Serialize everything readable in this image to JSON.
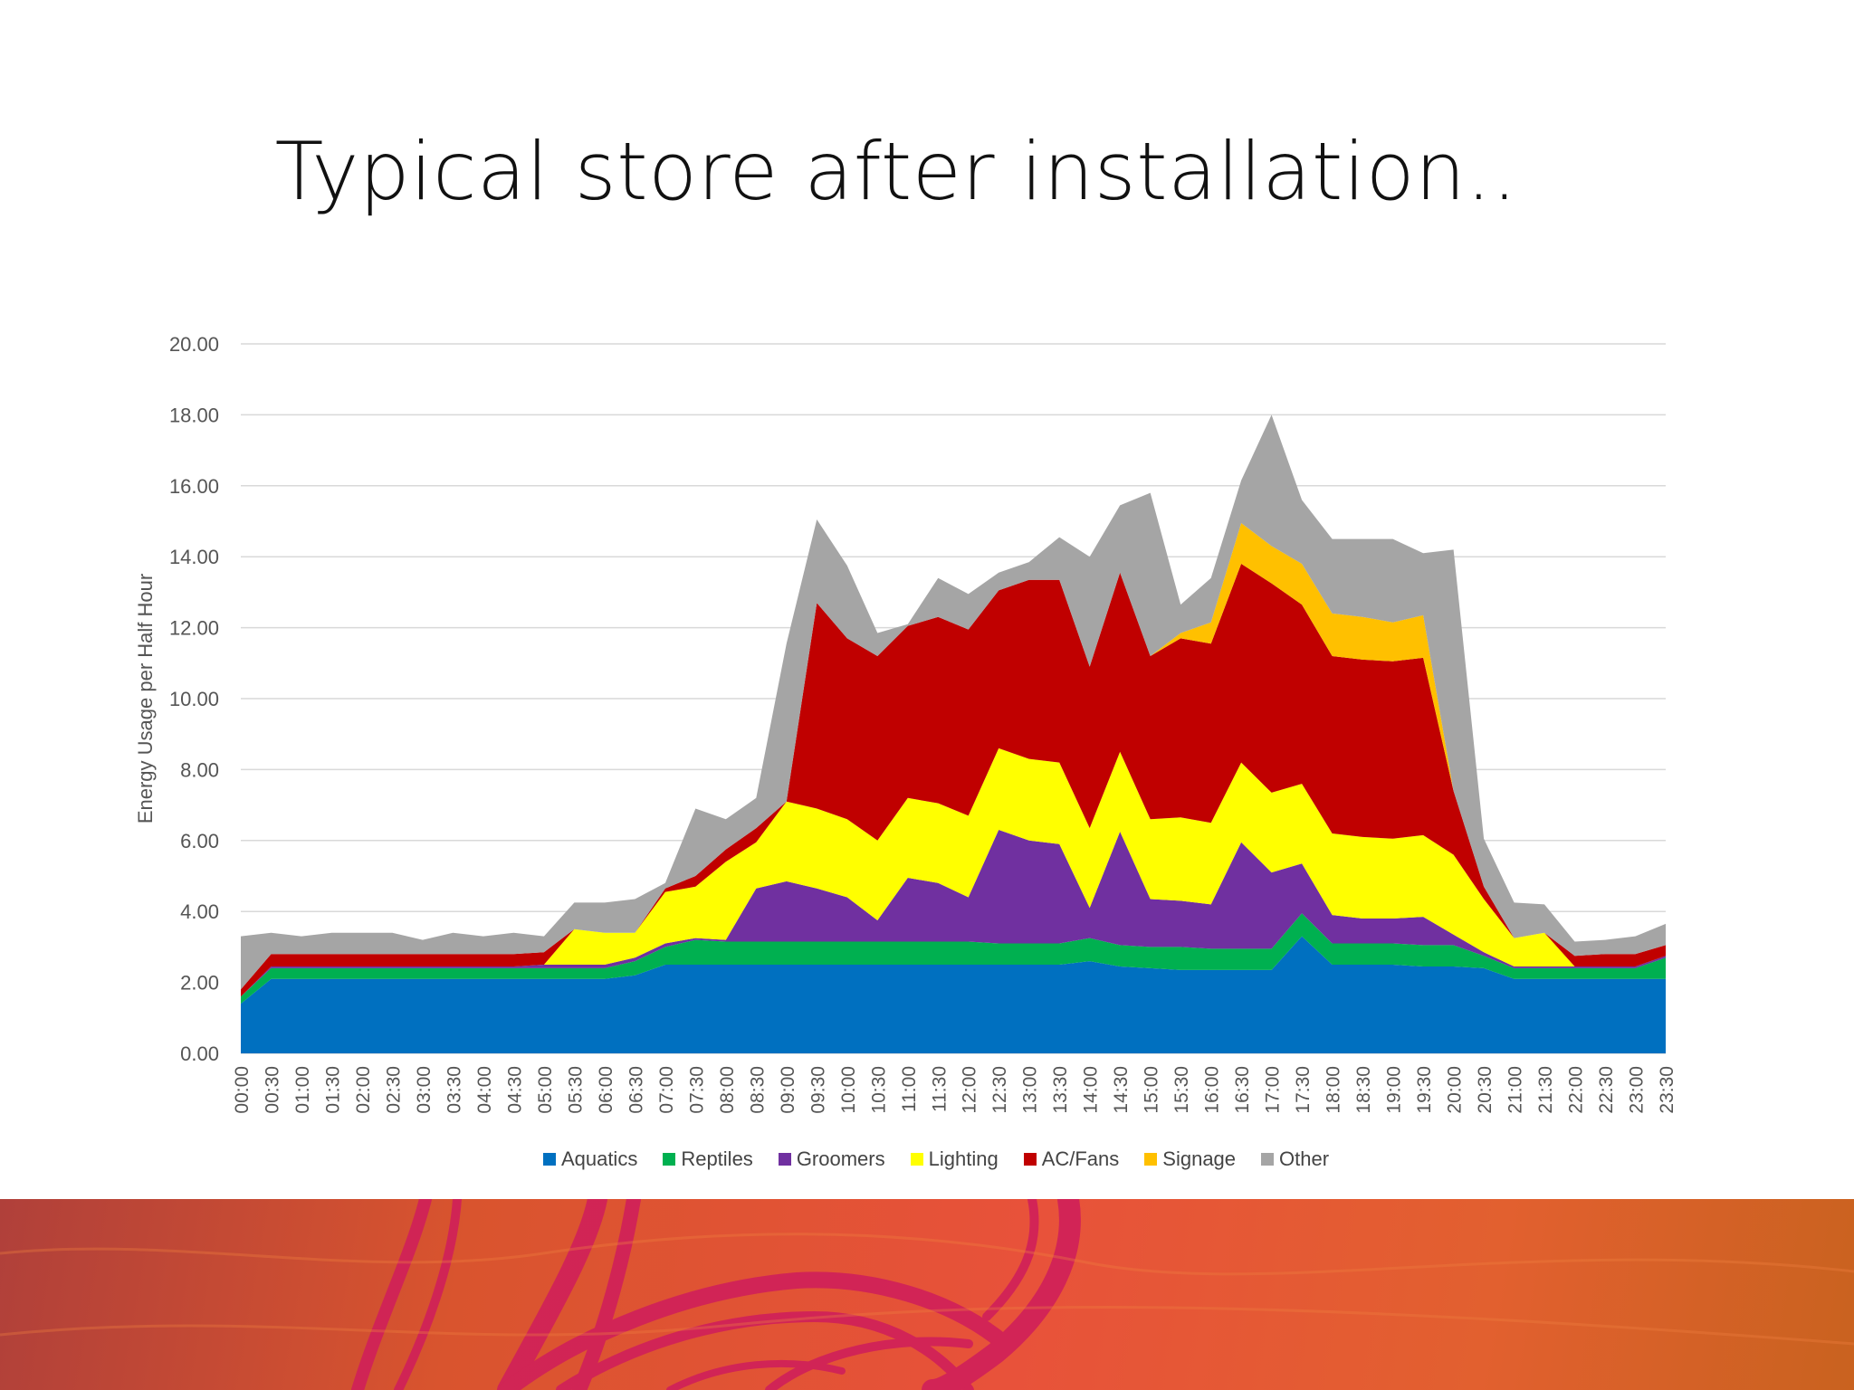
{
  "slide": {
    "title": "Typical store after installation.."
  },
  "chart_data": {
    "type": "area",
    "stacked": true,
    "title": "",
    "xlabel": "",
    "ylabel": "Energy Usage per Half Hour",
    "ylim": [
      0,
      20
    ],
    "yticks": [
      "0.00",
      "2.00",
      "4.00",
      "6.00",
      "8.00",
      "10.00",
      "12.00",
      "14.00",
      "16.00",
      "18.00",
      "20.00"
    ],
    "grid": true,
    "legend_position": "bottom",
    "categories": [
      "00:00",
      "00:30",
      "01:00",
      "01:30",
      "02:00",
      "02:30",
      "03:00",
      "03:30",
      "04:00",
      "04:30",
      "05:00",
      "05:30",
      "06:00",
      "06:30",
      "07:00",
      "07:30",
      "08:00",
      "08:30",
      "09:00",
      "09:30",
      "10:00",
      "10:30",
      "11:00",
      "11:30",
      "12:00",
      "12:30",
      "13:00",
      "13:30",
      "14:00",
      "14:30",
      "15:00",
      "15:30",
      "16:00",
      "16:30",
      "17:00",
      "17:30",
      "18:00",
      "18:30",
      "19:00",
      "19:30",
      "20:00",
      "20:30",
      "21:00",
      "21:30",
      "22:00",
      "22:30",
      "23:00",
      "23:30"
    ],
    "series": [
      {
        "name": "Aquatics",
        "color": "#0070c0",
        "values": [
          1.4,
          2.1,
          2.1,
          2.1,
          2.1,
          2.1,
          2.1,
          2.1,
          2.1,
          2.1,
          2.1,
          2.1,
          2.1,
          2.2,
          2.5,
          2.5,
          2.5,
          2.5,
          2.5,
          2.5,
          2.5,
          2.5,
          2.5,
          2.5,
          2.5,
          2.5,
          2.5,
          2.5,
          2.6,
          2.45,
          2.4,
          2.35,
          2.35,
          2.35,
          2.35,
          3.3,
          2.5,
          2.5,
          2.5,
          2.45,
          2.45,
          2.4,
          2.1,
          2.1,
          2.1,
          2.1,
          2.1,
          2.1
        ]
      },
      {
        "name": "Reptiles",
        "color": "#00b050",
        "values": [
          0.2,
          0.3,
          0.3,
          0.3,
          0.3,
          0.3,
          0.3,
          0.3,
          0.3,
          0.3,
          0.3,
          0.3,
          0.3,
          0.4,
          0.5,
          0.7,
          0.65,
          0.65,
          0.65,
          0.65,
          0.65,
          0.65,
          0.65,
          0.65,
          0.65,
          0.6,
          0.6,
          0.6,
          0.65,
          0.6,
          0.6,
          0.65,
          0.6,
          0.6,
          0.6,
          0.65,
          0.6,
          0.6,
          0.6,
          0.6,
          0.6,
          0.35,
          0.3,
          0.3,
          0.3,
          0.3,
          0.3,
          0.6
        ]
      },
      {
        "name": "Groomers",
        "color": "#7030a0",
        "values": [
          0,
          0.05,
          0.05,
          0.05,
          0.05,
          0.05,
          0.05,
          0.05,
          0.05,
          0.05,
          0.1,
          0.1,
          0.1,
          0.1,
          0.1,
          0.05,
          0.05,
          1.5,
          1.7,
          1.5,
          1.25,
          0.6,
          1.8,
          1.65,
          1.25,
          3.2,
          2.9,
          2.8,
          0.85,
          3.2,
          1.35,
          1.3,
          1.25,
          3.0,
          2.15,
          1.4,
          0.8,
          0.7,
          0.7,
          0.8,
          0.3,
          0.1,
          0.05,
          0.05,
          0.05,
          0.05,
          0.05,
          0.05
        ]
      },
      {
        "name": "Lighting",
        "color": "#ffff00",
        "values": [
          0,
          0,
          0,
          0,
          0,
          0,
          0,
          0,
          0,
          0,
          0,
          1.0,
          0.9,
          0.7,
          1.45,
          1.45,
          2.2,
          1.3,
          2.25,
          2.25,
          2.2,
          2.25,
          2.25,
          2.25,
          2.3,
          2.3,
          2.3,
          2.3,
          2.25,
          2.25,
          2.25,
          2.35,
          2.3,
          2.25,
          2.25,
          2.25,
          2.3,
          2.3,
          2.25,
          2.3,
          2.25,
          1.5,
          0.8,
          0.95,
          0,
          0,
          0,
          0
        ]
      },
      {
        "name": "AC/Fans",
        "color": "#c00000",
        "values": [
          0.2,
          0.35,
          0.35,
          0.35,
          0.35,
          0.35,
          0.35,
          0.35,
          0.35,
          0.35,
          0.35,
          0,
          0,
          0,
          0.1,
          0.3,
          0.35,
          0.4,
          0,
          5.8,
          5.1,
          5.2,
          4.85,
          5.25,
          5.25,
          4.45,
          5.05,
          5.15,
          4.55,
          5.05,
          4.6,
          5.05,
          5.05,
          5.6,
          5.9,
          5.05,
          5.0,
          5.0,
          5.0,
          5.0,
          1.8,
          0.35,
          0,
          0,
          0.3,
          0.35,
          0.35,
          0.3
        ]
      },
      {
        "name": "Signage",
        "color": "#ffc000",
        "values": [
          0,
          0,
          0,
          0,
          0,
          0,
          0,
          0,
          0,
          0,
          0,
          0,
          0,
          0,
          0,
          0,
          0,
          0,
          0,
          0,
          0,
          0,
          0,
          0,
          0,
          0,
          0,
          0,
          0,
          0,
          0,
          0.15,
          0.6,
          1.15,
          1.05,
          1.15,
          1.2,
          1.2,
          1.1,
          1.2,
          0,
          0,
          0,
          0,
          0,
          0,
          0,
          0
        ]
      },
      {
        "name": "Other",
        "color": "#a5a5a5",
        "values": [
          1.5,
          0.6,
          0.5,
          0.6,
          0.6,
          0.6,
          0.4,
          0.6,
          0.5,
          0.6,
          0.45,
          0.75,
          0.85,
          0.95,
          0.15,
          1.9,
          0.85,
          0.85,
          4.45,
          2.35,
          2.05,
          0.65,
          0.05,
          1.1,
          1.0,
          0.5,
          0.5,
          1.2,
          3.1,
          1.9,
          4.6,
          0.8,
          1.25,
          1.2,
          3.7,
          1.8,
          2.1,
          2.2,
          2.35,
          1.75,
          6.8,
          1.35,
          1.0,
          0.8,
          0.4,
          0.4,
          0.5,
          0.6
        ]
      }
    ]
  }
}
